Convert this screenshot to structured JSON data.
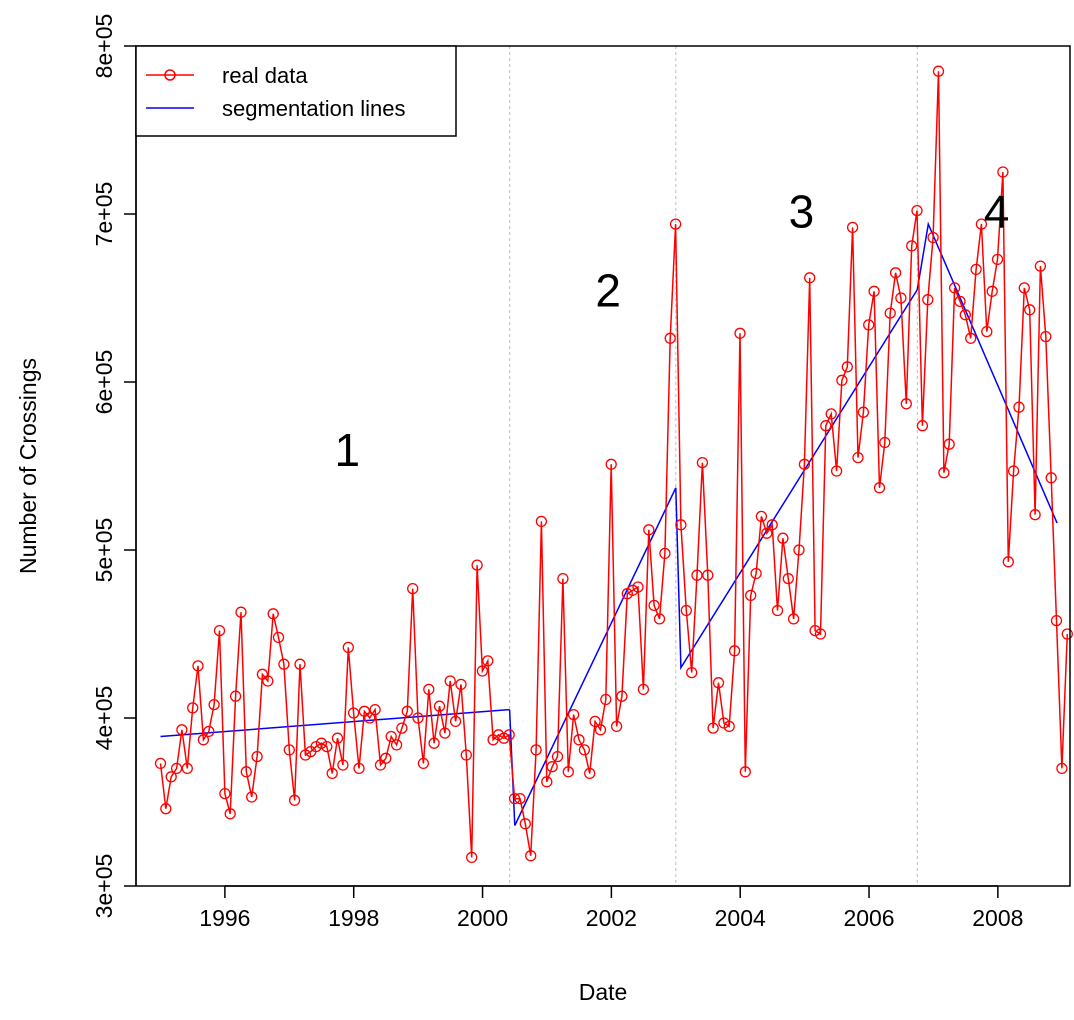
{
  "chart_data": {
    "type": "line",
    "xlabel": "Date",
    "ylabel": "Number of Crossings",
    "xlim": [
      1994.62,
      2009.12
    ],
    "ylim": [
      300000,
      800000
    ],
    "x_ticks": [
      1996,
      1998,
      2000,
      2002,
      2004,
      2006,
      2008
    ],
    "x_tick_labels": [
      "1996",
      "1998",
      "2000",
      "2002",
      "2004",
      "2006",
      "2008"
    ],
    "y_ticks": [
      300000,
      400000,
      500000,
      600000,
      700000,
      800000
    ],
    "y_tick_labels": [
      "3e+05",
      "4e+05",
      "5e+05",
      "6e+05",
      "7e+05",
      "8e+05"
    ],
    "legend": {
      "position": "top-left",
      "entries": [
        {
          "label": "real data",
          "color": "#ff0000",
          "style": "line-circle"
        },
        {
          "label": "segmentation lines",
          "color": "#0000ff",
          "style": "line"
        }
      ]
    },
    "breakpoints": [
      2000.42,
      2003.0,
      2006.75
    ],
    "segment_labels": [
      {
        "text": "1",
        "x": 1997.9,
        "y": 550000
      },
      {
        "text": "2",
        "x": 2001.95,
        "y": 645000
      },
      {
        "text": "3",
        "x": 2004.95,
        "y": 692000
      },
      {
        "text": "4",
        "x": 2007.98,
        "y": 692000
      }
    ],
    "series": [
      {
        "name": "real data",
        "color": "#ff0000",
        "x_start": 1995.0,
        "x_step": 0.0833,
        "values": [
          373000,
          346000,
          365000,
          370000,
          393000,
          370000,
          406000,
          431000,
          387000,
          392000,
          408000,
          452000,
          355000,
          343000,
          413000,
          463000,
          368000,
          353000,
          377000,
          426000,
          422000,
          462000,
          448000,
          432000,
          381000,
          351000,
          432000,
          378000,
          380000,
          383000,
          385000,
          383000,
          367000,
          388000,
          372000,
          442000,
          403000,
          370000,
          404000,
          400000,
          405000,
          372000,
          376000,
          389000,
          384000,
          394000,
          404000,
          477000,
          400000,
          373000,
          417000,
          385000,
          407000,
          391000,
          422000,
          398000,
          420000,
          378000,
          317000,
          491000,
          428000,
          434000,
          387000,
          390000,
          388000,
          390000,
          352000,
          352000,
          337000,
          318000,
          381000,
          517000,
          362000,
          371000,
          377000,
          483000,
          368000,
          402000,
          387000,
          381000,
          367000,
          398000,
          393000,
          411000,
          551000,
          395000,
          413000,
          474000,
          476000,
          478000,
          417000,
          512000,
          467000,
          459000,
          498000,
          626000,
          694000,
          515000,
          464000,
          427000,
          485000,
          552000,
          485000,
          394000,
          421000,
          397000,
          395000,
          440000,
          629000,
          368000,
          473000,
          486000,
          520000,
          510000,
          515000,
          464000,
          507000,
          483000,
          459000,
          500000,
          551000,
          662000,
          452000,
          450000,
          574000,
          581000,
          547000,
          601000,
          609000,
          692000,
          555000,
          582000,
          634000,
          654000,
          537000,
          564000,
          641000,
          665000,
          650000,
          587000,
          681000,
          702000,
          574000,
          649000,
          686000,
          785000,
          546000,
          563000,
          656000,
          648000,
          640000,
          626000,
          667000,
          694000,
          630000,
          654000,
          673000,
          725000,
          493000,
          547000,
          585000,
          656000,
          643000,
          521000,
          669000,
          627000,
          543000,
          458000,
          370000,
          450000
        ]
      },
      {
        "name": "segmentation lines",
        "color": "#0000ff",
        "segments": [
          [
            [
              1995.0,
              389000
            ],
            [
              2000.42,
              405000
            ]
          ],
          [
            [
              2000.42,
              405000
            ],
            [
              2000.5,
              336000
            ],
            [
              2003.0,
              537000
            ]
          ],
          [
            [
              2003.0,
              537000
            ],
            [
              2003.08,
              430000
            ],
            [
              2006.75,
              655000
            ]
          ],
          [
            [
              2006.75,
              655000
            ],
            [
              2006.92,
              694000
            ],
            [
              2008.92,
              516000
            ]
          ]
        ]
      }
    ]
  }
}
